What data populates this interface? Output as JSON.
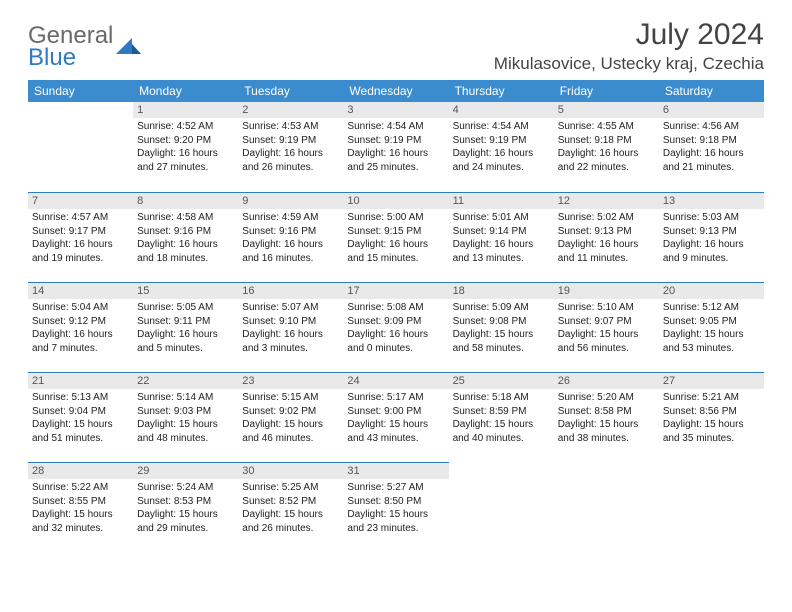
{
  "brand": {
    "general": "General",
    "blue": "Blue"
  },
  "title": "July 2024",
  "location": "Mikulasovice, Ustecky kraj, Czechia",
  "colors": {
    "header_bg": "#3b8cce",
    "header_text": "#ffffff",
    "daynum_bg": "#e9e9e9",
    "border": "#2f7ac0",
    "logo_gray": "#6a6a6a",
    "logo_blue": "#2f7ac0"
  },
  "weekdays": [
    "Sunday",
    "Monday",
    "Tuesday",
    "Wednesday",
    "Thursday",
    "Friday",
    "Saturday"
  ],
  "weeks": [
    [
      null,
      {
        "n": "1",
        "sr": "Sunrise: 4:52 AM",
        "ss": "Sunset: 9:20 PM",
        "d1": "Daylight: 16 hours",
        "d2": "and 27 minutes."
      },
      {
        "n": "2",
        "sr": "Sunrise: 4:53 AM",
        "ss": "Sunset: 9:19 PM",
        "d1": "Daylight: 16 hours",
        "d2": "and 26 minutes."
      },
      {
        "n": "3",
        "sr": "Sunrise: 4:54 AM",
        "ss": "Sunset: 9:19 PM",
        "d1": "Daylight: 16 hours",
        "d2": "and 25 minutes."
      },
      {
        "n": "4",
        "sr": "Sunrise: 4:54 AM",
        "ss": "Sunset: 9:19 PM",
        "d1": "Daylight: 16 hours",
        "d2": "and 24 minutes."
      },
      {
        "n": "5",
        "sr": "Sunrise: 4:55 AM",
        "ss": "Sunset: 9:18 PM",
        "d1": "Daylight: 16 hours",
        "d2": "and 22 minutes."
      },
      {
        "n": "6",
        "sr": "Sunrise: 4:56 AM",
        "ss": "Sunset: 9:18 PM",
        "d1": "Daylight: 16 hours",
        "d2": "and 21 minutes."
      }
    ],
    [
      {
        "n": "7",
        "sr": "Sunrise: 4:57 AM",
        "ss": "Sunset: 9:17 PM",
        "d1": "Daylight: 16 hours",
        "d2": "and 19 minutes."
      },
      {
        "n": "8",
        "sr": "Sunrise: 4:58 AM",
        "ss": "Sunset: 9:16 PM",
        "d1": "Daylight: 16 hours",
        "d2": "and 18 minutes."
      },
      {
        "n": "9",
        "sr": "Sunrise: 4:59 AM",
        "ss": "Sunset: 9:16 PM",
        "d1": "Daylight: 16 hours",
        "d2": "and 16 minutes."
      },
      {
        "n": "10",
        "sr": "Sunrise: 5:00 AM",
        "ss": "Sunset: 9:15 PM",
        "d1": "Daylight: 16 hours",
        "d2": "and 15 minutes."
      },
      {
        "n": "11",
        "sr": "Sunrise: 5:01 AM",
        "ss": "Sunset: 9:14 PM",
        "d1": "Daylight: 16 hours",
        "d2": "and 13 minutes."
      },
      {
        "n": "12",
        "sr": "Sunrise: 5:02 AM",
        "ss": "Sunset: 9:13 PM",
        "d1": "Daylight: 16 hours",
        "d2": "and 11 minutes."
      },
      {
        "n": "13",
        "sr": "Sunrise: 5:03 AM",
        "ss": "Sunset: 9:13 PM",
        "d1": "Daylight: 16 hours",
        "d2": "and 9 minutes."
      }
    ],
    [
      {
        "n": "14",
        "sr": "Sunrise: 5:04 AM",
        "ss": "Sunset: 9:12 PM",
        "d1": "Daylight: 16 hours",
        "d2": "and 7 minutes."
      },
      {
        "n": "15",
        "sr": "Sunrise: 5:05 AM",
        "ss": "Sunset: 9:11 PM",
        "d1": "Daylight: 16 hours",
        "d2": "and 5 minutes."
      },
      {
        "n": "16",
        "sr": "Sunrise: 5:07 AM",
        "ss": "Sunset: 9:10 PM",
        "d1": "Daylight: 16 hours",
        "d2": "and 3 minutes."
      },
      {
        "n": "17",
        "sr": "Sunrise: 5:08 AM",
        "ss": "Sunset: 9:09 PM",
        "d1": "Daylight: 16 hours",
        "d2": "and 0 minutes."
      },
      {
        "n": "18",
        "sr": "Sunrise: 5:09 AM",
        "ss": "Sunset: 9:08 PM",
        "d1": "Daylight: 15 hours",
        "d2": "and 58 minutes."
      },
      {
        "n": "19",
        "sr": "Sunrise: 5:10 AM",
        "ss": "Sunset: 9:07 PM",
        "d1": "Daylight: 15 hours",
        "d2": "and 56 minutes."
      },
      {
        "n": "20",
        "sr": "Sunrise: 5:12 AM",
        "ss": "Sunset: 9:05 PM",
        "d1": "Daylight: 15 hours",
        "d2": "and 53 minutes."
      }
    ],
    [
      {
        "n": "21",
        "sr": "Sunrise: 5:13 AM",
        "ss": "Sunset: 9:04 PM",
        "d1": "Daylight: 15 hours",
        "d2": "and 51 minutes."
      },
      {
        "n": "22",
        "sr": "Sunrise: 5:14 AM",
        "ss": "Sunset: 9:03 PM",
        "d1": "Daylight: 15 hours",
        "d2": "and 48 minutes."
      },
      {
        "n": "23",
        "sr": "Sunrise: 5:15 AM",
        "ss": "Sunset: 9:02 PM",
        "d1": "Daylight: 15 hours",
        "d2": "and 46 minutes."
      },
      {
        "n": "24",
        "sr": "Sunrise: 5:17 AM",
        "ss": "Sunset: 9:00 PM",
        "d1": "Daylight: 15 hours",
        "d2": "and 43 minutes."
      },
      {
        "n": "25",
        "sr": "Sunrise: 5:18 AM",
        "ss": "Sunset: 8:59 PM",
        "d1": "Daylight: 15 hours",
        "d2": "and 40 minutes."
      },
      {
        "n": "26",
        "sr": "Sunrise: 5:20 AM",
        "ss": "Sunset: 8:58 PM",
        "d1": "Daylight: 15 hours",
        "d2": "and 38 minutes."
      },
      {
        "n": "27",
        "sr": "Sunrise: 5:21 AM",
        "ss": "Sunset: 8:56 PM",
        "d1": "Daylight: 15 hours",
        "d2": "and 35 minutes."
      }
    ],
    [
      {
        "n": "28",
        "sr": "Sunrise: 5:22 AM",
        "ss": "Sunset: 8:55 PM",
        "d1": "Daylight: 15 hours",
        "d2": "and 32 minutes."
      },
      {
        "n": "29",
        "sr": "Sunrise: 5:24 AM",
        "ss": "Sunset: 8:53 PM",
        "d1": "Daylight: 15 hours",
        "d2": "and 29 minutes."
      },
      {
        "n": "30",
        "sr": "Sunrise: 5:25 AM",
        "ss": "Sunset: 8:52 PM",
        "d1": "Daylight: 15 hours",
        "d2": "and 26 minutes."
      },
      {
        "n": "31",
        "sr": "Sunrise: 5:27 AM",
        "ss": "Sunset: 8:50 PM",
        "d1": "Daylight: 15 hours",
        "d2": "and 23 minutes."
      },
      null,
      null,
      null
    ]
  ]
}
